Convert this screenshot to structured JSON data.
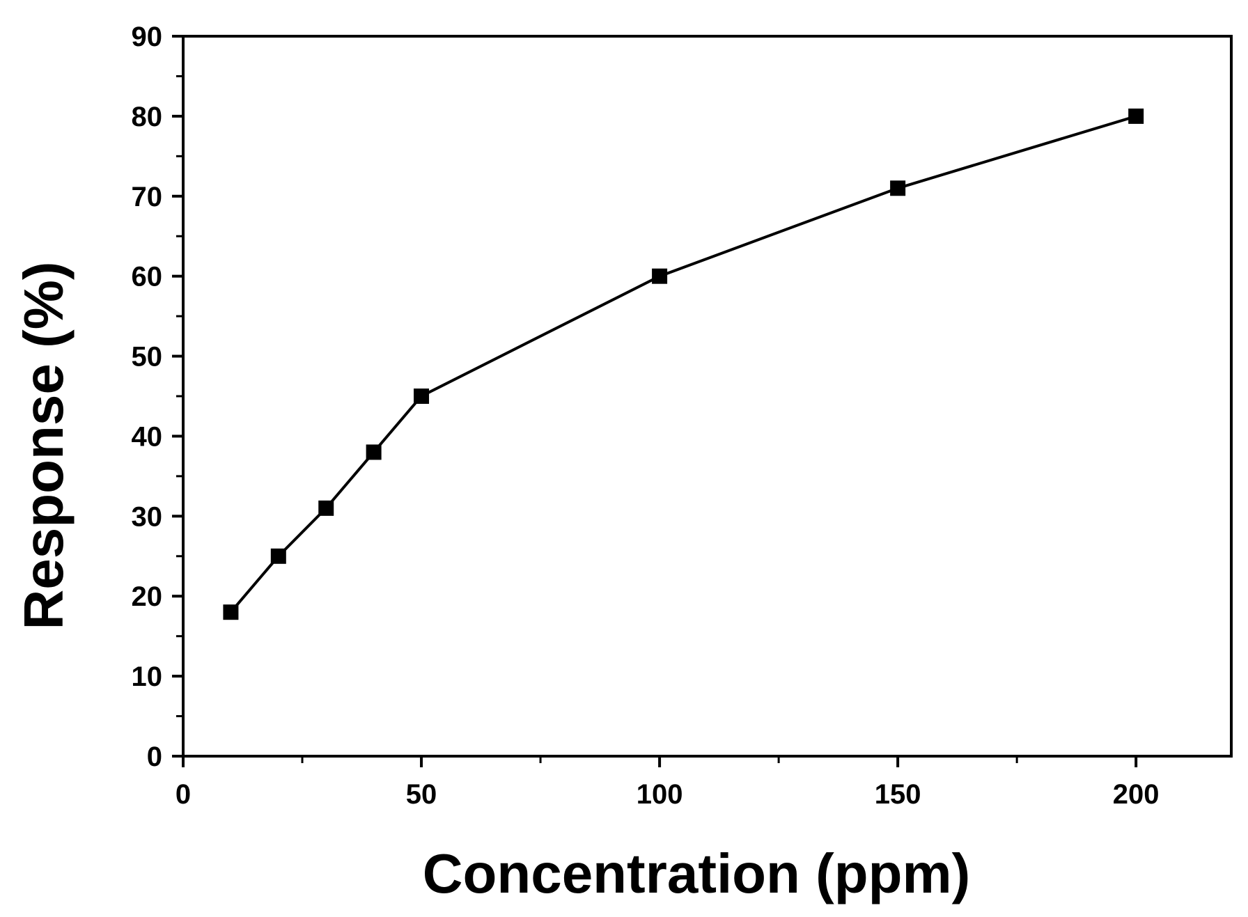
{
  "chart_data": {
    "type": "line",
    "title": "",
    "xlabel": "Concentration (ppm)",
    "ylabel": "Response (%)",
    "xlim": [
      0,
      220
    ],
    "ylim": [
      0,
      90
    ],
    "x_ticks": [
      0,
      50,
      100,
      150,
      200
    ],
    "x_minor_ticks": [
      25,
      75,
      125,
      175
    ],
    "y_ticks": [
      0,
      10,
      20,
      30,
      40,
      50,
      60,
      70,
      80,
      90
    ],
    "grid": false,
    "legend": "none",
    "marker": "square",
    "line_color": "#000000",
    "series": [
      {
        "x": [
          10,
          20,
          30,
          40,
          50,
          100,
          150,
          200
        ],
        "values": [
          18,
          25,
          31,
          38,
          45,
          60,
          71,
          80
        ]
      }
    ]
  }
}
